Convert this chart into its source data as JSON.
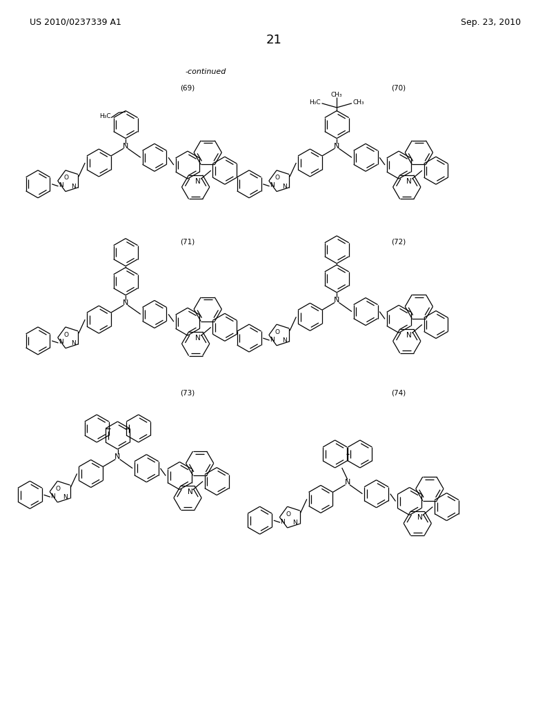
{
  "patent_number": "US 2010/0237339 A1",
  "date": "Sep. 23, 2010",
  "page_number": "21",
  "continued_label": "-continued",
  "background_color": "#ffffff",
  "text_color": "#000000",
  "line_color": "#000000",
  "lw": 0.9
}
